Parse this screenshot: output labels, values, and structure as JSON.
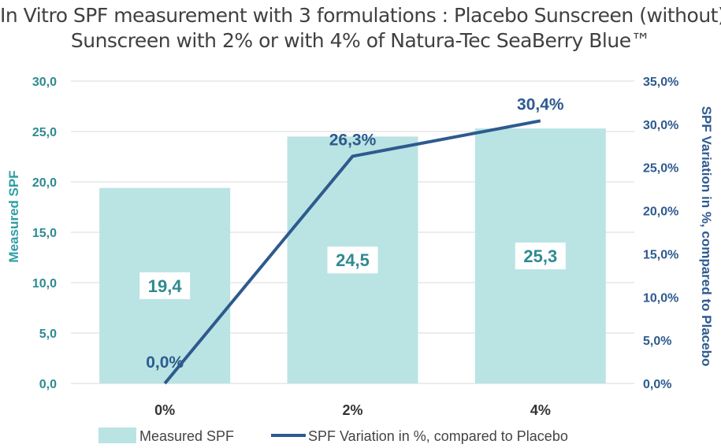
{
  "title_line1": "In Vitro SPF measurement with 3 formulations : Placebo Sunscreen (without) /",
  "title_line2": "Sunscreen with 2% or with 4% of Natura-Tec SeaBerry Blue™",
  "colors": {
    "bar": "#b9e4e3",
    "line": "#2e5a8f",
    "left_axis": "#2f8a91",
    "right_axis": "#2e5a8f",
    "grid": "#d9d9d9"
  },
  "chart_data": {
    "type": "bar",
    "categories": [
      "0%",
      "2%",
      "4%"
    ],
    "series": [
      {
        "name": "Measured SPF",
        "type": "bar",
        "axis": "left",
        "values": [
          19.4,
          24.5,
          25.3
        ],
        "labels": [
          "19,4",
          "24,5",
          "25,3"
        ]
      },
      {
        "name": "SPF Variation in %, compared to Placebo",
        "type": "line",
        "axis": "right",
        "values": [
          0.0,
          26.3,
          30.4
        ],
        "labels": [
          "0,0%",
          "26,3%",
          "30,4%"
        ]
      }
    ],
    "ylabel": "Measured SPF",
    "ylabel_right": "SPF Variation in %, compared to Placebo",
    "ylim": [
      0,
      30
    ],
    "ylim_right": [
      0,
      35
    ],
    "yticks": [
      "0,0",
      "5,0",
      "10,0",
      "15,0",
      "20,0",
      "25,0",
      "30,0"
    ],
    "yticks_right": [
      "0,0%",
      "5,0%",
      "10,0%",
      "15,0%",
      "20,0%",
      "25,0%",
      "30,0%",
      "35,0%"
    ],
    "grid": true,
    "legend_position": "bottom"
  }
}
